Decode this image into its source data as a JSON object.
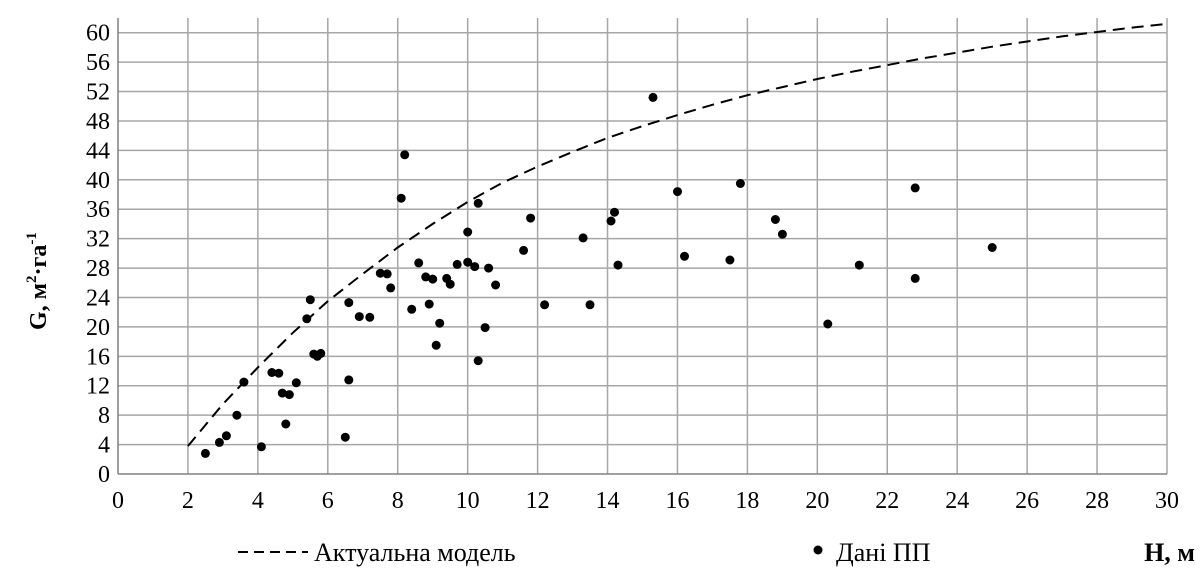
{
  "chart_data": {
    "type": "scatter",
    "xlabel": "H, м",
    "ylabel_main": "G, м",
    "ylabel_sup1": "2",
    "ylabel_mid": "·га",
    "ylabel_sup2": "-1",
    "xlim": [
      0,
      30
    ],
    "ylim": [
      0,
      62
    ],
    "x_ticks": [
      0,
      2,
      4,
      6,
      8,
      10,
      12,
      14,
      16,
      18,
      20,
      22,
      24,
      26,
      28,
      30
    ],
    "y_ticks": [
      0,
      4,
      8,
      12,
      16,
      20,
      24,
      28,
      32,
      36,
      40,
      44,
      48,
      52,
      56,
      60
    ],
    "grid": true,
    "legend_position": "bottom",
    "series": [
      {
        "name": "Актуальна модель",
        "kind": "line",
        "style": "dashed",
        "color": "#000000",
        "points": [
          [
            2,
            3.8
          ],
          [
            3,
            9.5
          ],
          [
            4,
            14.5
          ],
          [
            5,
            19.2
          ],
          [
            6,
            23.5
          ],
          [
            7,
            27.2
          ],
          [
            8,
            30.8
          ],
          [
            9,
            34.0
          ],
          [
            10,
            37.0
          ],
          [
            11,
            39.6
          ],
          [
            12,
            41.8
          ],
          [
            13,
            43.8
          ],
          [
            14,
            45.7
          ],
          [
            15,
            47.3
          ],
          [
            16,
            48.8
          ],
          [
            17,
            50.2
          ],
          [
            18,
            51.5
          ],
          [
            19,
            52.6
          ],
          [
            20,
            53.7
          ],
          [
            21,
            54.7
          ],
          [
            22,
            55.6
          ],
          [
            23,
            56.5
          ],
          [
            24,
            57.3
          ],
          [
            25,
            58.1
          ],
          [
            26,
            58.8
          ],
          [
            27,
            59.5
          ],
          [
            28,
            60.1
          ],
          [
            29,
            60.7
          ],
          [
            30,
            61.2
          ]
        ]
      },
      {
        "name": "Дані ПП",
        "kind": "scatter",
        "color": "#000000",
        "points": [
          [
            2.5,
            2.8
          ],
          [
            2.9,
            4.3
          ],
          [
            3.1,
            5.2
          ],
          [
            3.4,
            8.0
          ],
          [
            3.6,
            12.5
          ],
          [
            4.1,
            3.7
          ],
          [
            4.4,
            13.8
          ],
          [
            4.6,
            13.7
          ],
          [
            4.7,
            11.0
          ],
          [
            4.8,
            6.8
          ],
          [
            4.9,
            10.8
          ],
          [
            5.1,
            12.4
          ],
          [
            5.4,
            21.1
          ],
          [
            5.5,
            23.7
          ],
          [
            5.6,
            16.3
          ],
          [
            5.7,
            16.0
          ],
          [
            5.8,
            16.4
          ],
          [
            6.5,
            5.0
          ],
          [
            6.6,
            23.3
          ],
          [
            6.6,
            12.8
          ],
          [
            6.9,
            21.4
          ],
          [
            7.2,
            21.3
          ],
          [
            7.5,
            27.3
          ],
          [
            7.7,
            27.2
          ],
          [
            7.8,
            25.3
          ],
          [
            8.1,
            37.5
          ],
          [
            8.2,
            43.4
          ],
          [
            8.4,
            22.4
          ],
          [
            8.6,
            28.7
          ],
          [
            8.8,
            26.8
          ],
          [
            8.9,
            23.1
          ],
          [
            9.0,
            26.5
          ],
          [
            9.1,
            17.5
          ],
          [
            9.2,
            20.5
          ],
          [
            9.4,
            26.6
          ],
          [
            9.5,
            25.8
          ],
          [
            9.7,
            28.5
          ],
          [
            10.0,
            28.8
          ],
          [
            10.0,
            32.9
          ],
          [
            10.2,
            28.2
          ],
          [
            10.3,
            36.8
          ],
          [
            10.3,
            15.4
          ],
          [
            10.5,
            19.9
          ],
          [
            10.6,
            28.0
          ],
          [
            10.8,
            25.7
          ],
          [
            11.6,
            30.4
          ],
          [
            11.8,
            34.8
          ],
          [
            12.2,
            23.0
          ],
          [
            13.3,
            32.1
          ],
          [
            13.5,
            23.0
          ],
          [
            14.1,
            34.4
          ],
          [
            14.2,
            35.6
          ],
          [
            14.3,
            28.4
          ],
          [
            15.3,
            51.2
          ],
          [
            16.0,
            38.4
          ],
          [
            16.2,
            29.6
          ],
          [
            17.5,
            29.1
          ],
          [
            17.8,
            39.5
          ],
          [
            18.8,
            34.6
          ],
          [
            19.0,
            32.6
          ],
          [
            20.3,
            20.4
          ],
          [
            21.2,
            28.4
          ],
          [
            22.8,
            38.9
          ],
          [
            22.8,
            26.6
          ],
          [
            25.0,
            30.8
          ]
        ]
      }
    ]
  }
}
